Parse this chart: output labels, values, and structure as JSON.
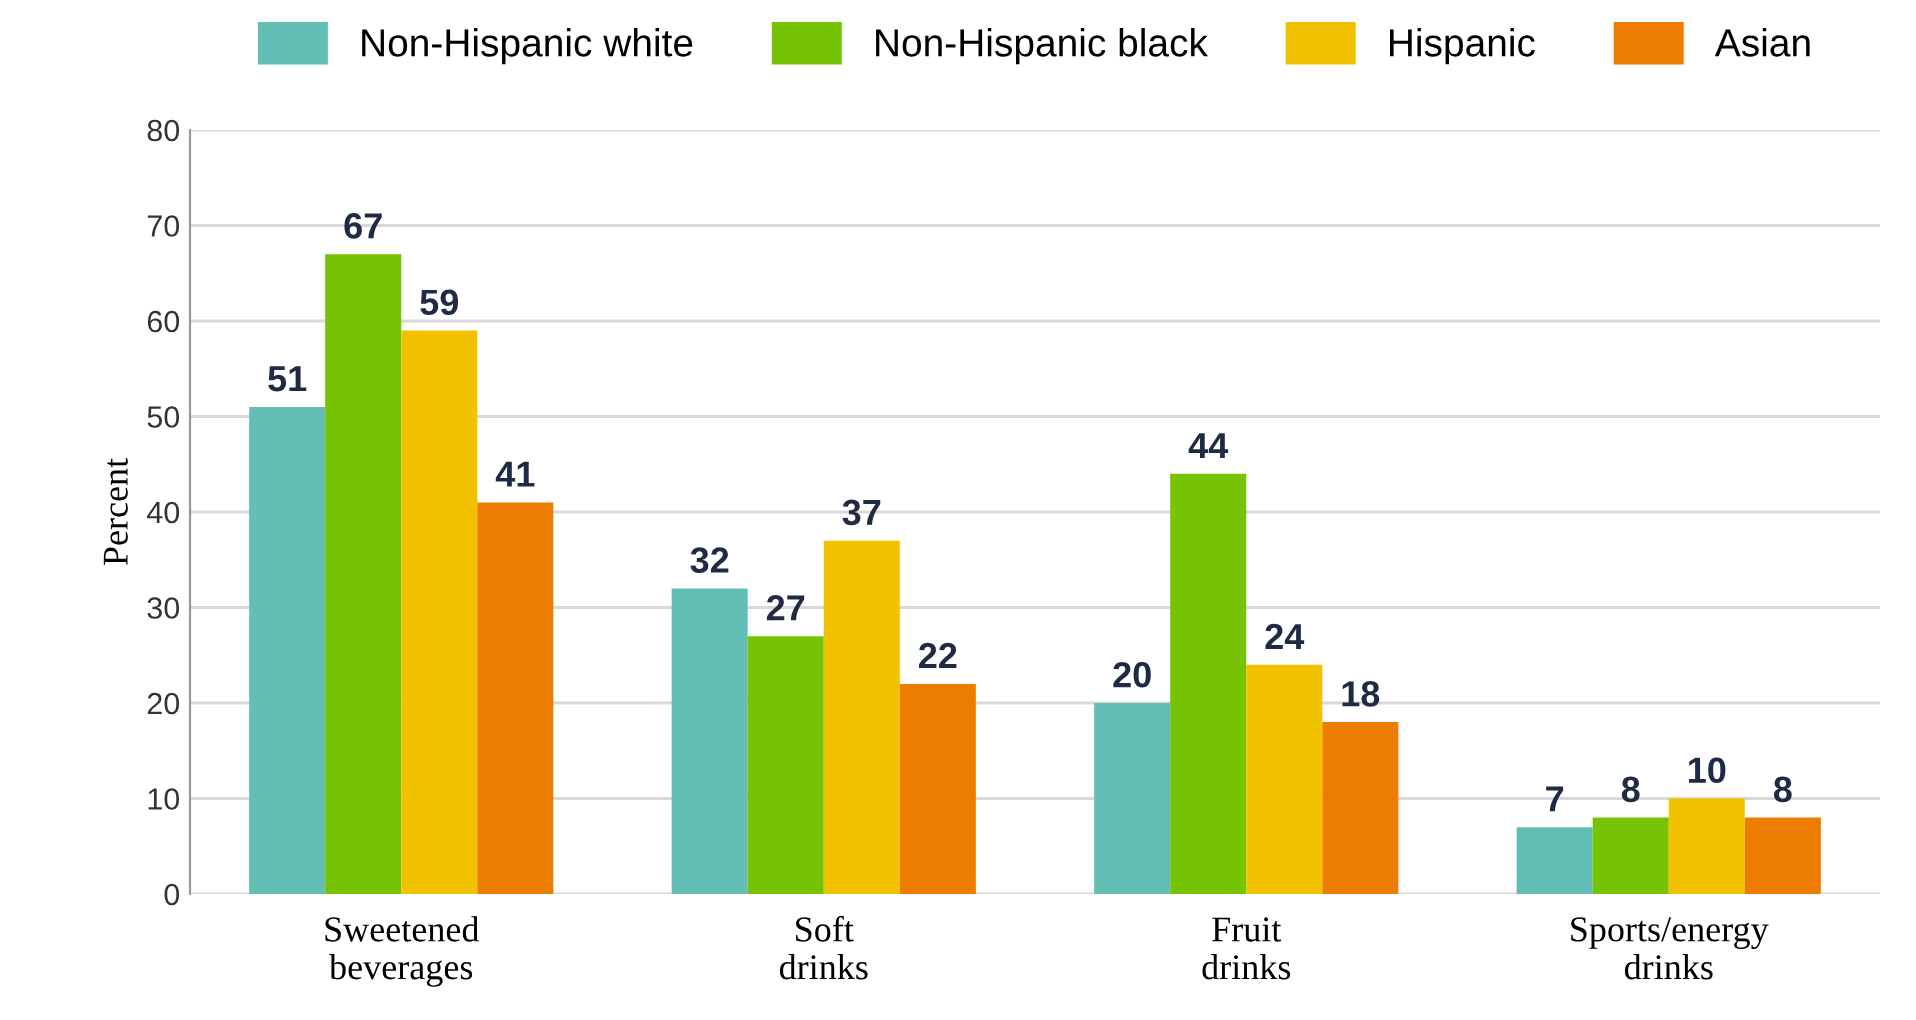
{
  "chart_data": {
    "type": "bar",
    "ylabel": "Percent",
    "categories": [
      "Sweetened\nbeverages",
      "Soft\ndrinks",
      "Fruit\ndrinks",
      "Sports/energy\ndrinks"
    ],
    "series": [
      {
        "name": "Non-Hispanic white",
        "color": "#63bfb4",
        "values": [
          51,
          32,
          20,
          7
        ]
      },
      {
        "name": "Non-Hispanic black",
        "color": "#76c304",
        "values": [
          67,
          27,
          44,
          8
        ]
      },
      {
        "name": "Hispanic",
        "color": "#f2c200",
        "values": [
          59,
          37,
          24,
          10
        ]
      },
      {
        "name": "Asian",
        "color": "#ec7d00",
        "values": [
          41,
          22,
          18,
          8
        ]
      }
    ],
    "ylim": [
      0,
      80
    ],
    "yticks": [
      0,
      10,
      20,
      30,
      40,
      50,
      60,
      70,
      80
    ],
    "grid": "y",
    "legend": "top",
    "data_labels": true
  }
}
